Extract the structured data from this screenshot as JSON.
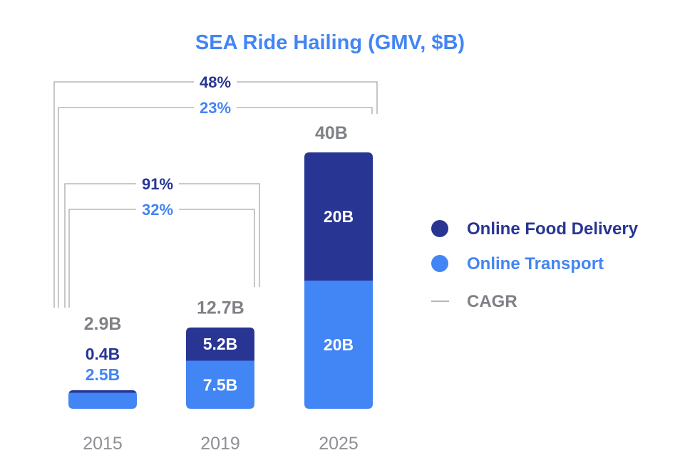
{
  "chart_data": {
    "type": "bar",
    "stacked": true,
    "title": "SEA Ride Hailing (GMV, $B)",
    "categories": [
      "2015",
      "2019",
      "2025"
    ],
    "series": [
      {
        "name": "Online Transport",
        "values": [
          2.5,
          7.5,
          20
        ],
        "labels": [
          "2.5B",
          "7.5B",
          "20B"
        ],
        "color": "#4285f4"
      },
      {
        "name": "Online Food Delivery",
        "values": [
          0.4,
          5.2,
          20
        ],
        "labels": [
          "0.4B",
          "5.2B",
          "20B"
        ],
        "color": "#283593"
      }
    ],
    "totals": {
      "values": [
        2.9,
        12.7,
        40
      ],
      "labels": [
        "2.9B",
        "12.7B",
        "40B"
      ]
    },
    "cagr": [
      {
        "from": "2015",
        "to": "2025",
        "series": "Online Food Delivery",
        "label": "48%"
      },
      {
        "from": "2015",
        "to": "2025",
        "series": "Online Transport",
        "label": "23%"
      },
      {
        "from": "2015",
        "to": "2019",
        "series": "Online Food Delivery",
        "label": "91%"
      },
      {
        "from": "2015",
        "to": "2019",
        "series": "Online Transport",
        "label": "32%"
      }
    ],
    "legend": {
      "position": "right",
      "items": [
        {
          "label": "Online Food Delivery",
          "marker": "dot",
          "color": "#283593"
        },
        {
          "label": "Online Transport",
          "marker": "dot",
          "color": "#4285f4"
        },
        {
          "label": "CAGR",
          "marker": "line",
          "color": "#9e9e9e"
        }
      ]
    },
    "ylim": [
      0,
      40
    ],
    "grid": false,
    "xlabel": "",
    "ylabel": ""
  },
  "colors": {
    "title": "#4285f4",
    "food": "#283593",
    "transport": "#4285f4",
    "total_label": "#7f8187",
    "tick_label": "#8e9096",
    "cagr_line": "#a9a9a9",
    "legend_text": "#283593",
    "legend_cagr_text": "#7f8187",
    "segment_label": "#ffffff"
  }
}
